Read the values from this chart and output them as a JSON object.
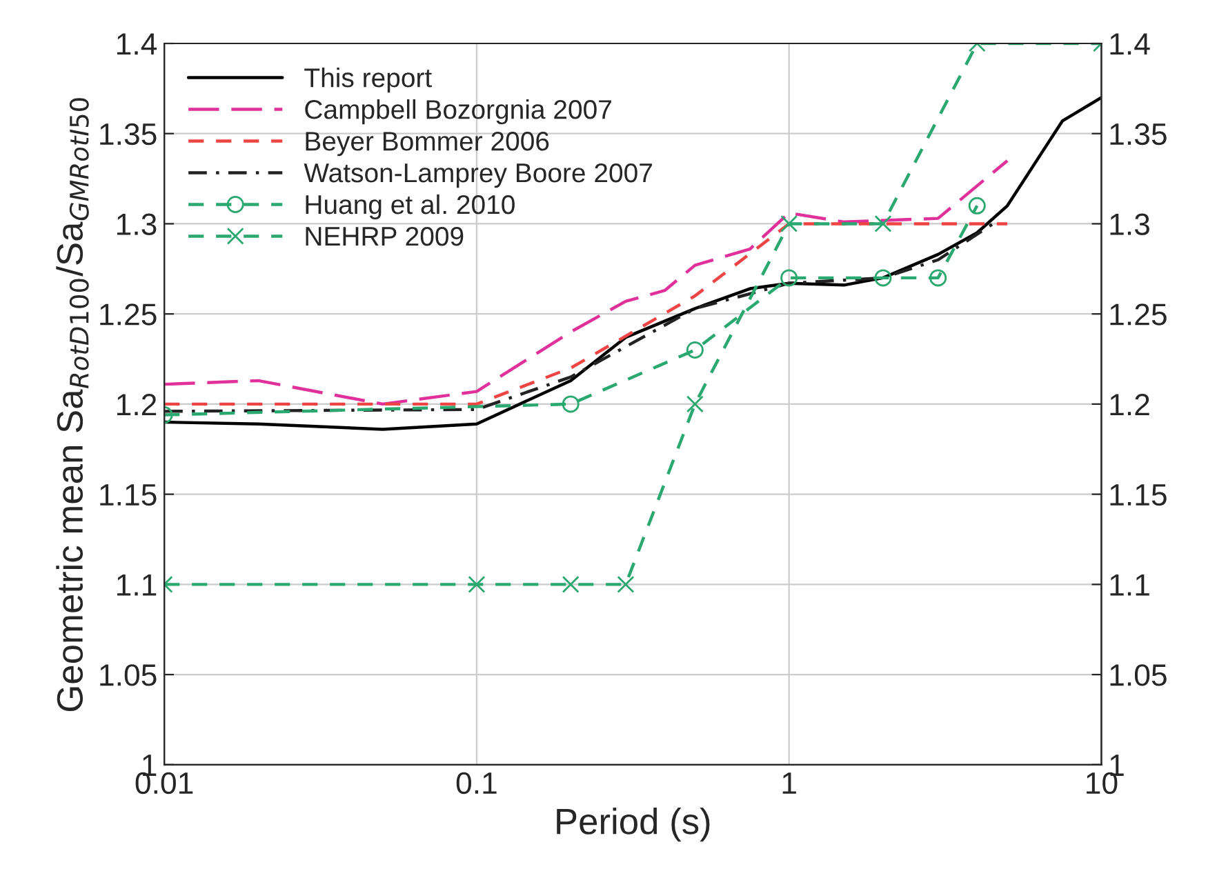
{
  "chart_data": {
    "type": "line",
    "xlabel": "Period (s)",
    "ylabel": "Geometric mean Sa$_{RotD100}$/Sa$_{GMRotI50}$",
    "log": "x",
    "grid": true,
    "legend": "top left",
    "xlim": [
      0.01,
      10
    ],
    "xticks": [
      0.01,
      0.1,
      1,
      10
    ],
    "ylim": [
      1,
      1.4
    ],
    "yticks": [
      1,
      1.05,
      1.1,
      1.15,
      1.2,
      1.25,
      1.3,
      1.35,
      1.4
    ],
    "y2lim": [
      1,
      1.4
    ],
    "y2ticks": [
      1,
      1.05,
      1.1,
      1.15,
      1.2,
      1.25,
      1.3,
      1.35,
      1.4
    ],
    "series": [
      {
        "name": "This report",
        "color": "#000000",
        "line_style": "solid",
        "marker": "none",
        "x": [
          0.01,
          0.02,
          0.05,
          0.1,
          0.2,
          0.3,
          0.5,
          0.75,
          1,
          1.5,
          2,
          3,
          4,
          5,
          7.5,
          10
        ],
        "values": [
          1.19,
          1.189,
          1.186,
          1.189,
          1.213,
          1.237,
          1.253,
          1.264,
          1.267,
          1.266,
          1.27,
          1.283,
          1.295,
          1.31,
          1.357,
          1.37
        ]
      },
      {
        "name": "Campbell Bozorgnia 2007",
        "color": "#e0309a",
        "line_style": "longdash",
        "marker": "none",
        "x": [
          0.01,
          0.02,
          0.05,
          0.1,
          0.2,
          0.3,
          0.4,
          0.5,
          0.75,
          1,
          1.5,
          3,
          5
        ],
        "values": [
          1.211,
          1.213,
          1.2,
          1.207,
          1.24,
          1.257,
          1.263,
          1.277,
          1.286,
          1.306,
          1.301,
          1.303,
          1.335
        ]
      },
      {
        "name": "Beyer Bommer 2006",
        "color": "#ee4444",
        "line_style": "dashed",
        "marker": "none",
        "x": [
          0.01,
          0.1,
          0.2,
          0.5,
          1,
          5
        ],
        "values": [
          1.2,
          1.2,
          1.22,
          1.26,
          1.3,
          1.3
        ]
      },
      {
        "name": "Watson-Lamprey Boore 2007",
        "color": "#222222",
        "line_style": "dashdot",
        "marker": "none",
        "x": [
          0.01,
          0.1,
          0.2,
          0.5,
          1,
          2,
          3,
          4.5
        ],
        "values": [
          1.196,
          1.197,
          1.215,
          1.253,
          1.267,
          1.27,
          1.28,
          1.3
        ]
      },
      {
        "name": "Huang et al. 2010",
        "color": "#2aa870",
        "line_style": "dashed",
        "marker": "circle",
        "x": [
          0.01,
          0.2,
          0.5,
          1,
          2,
          3,
          4
        ],
        "values": [
          1.194,
          1.2,
          1.23,
          1.27,
          1.27,
          1.27,
          1.31
        ]
      },
      {
        "name": "NEHRP 2009",
        "color": "#2aa870",
        "line_style": "dashed",
        "marker": "cross",
        "x": [
          0.01,
          0.1,
          0.2,
          0.3,
          0.5,
          1,
          2,
          4,
          10
        ],
        "values": [
          1.1,
          1.1,
          1.1,
          1.1,
          1.2,
          1.3,
          1.3,
          1.4,
          1.4
        ]
      }
    ]
  }
}
